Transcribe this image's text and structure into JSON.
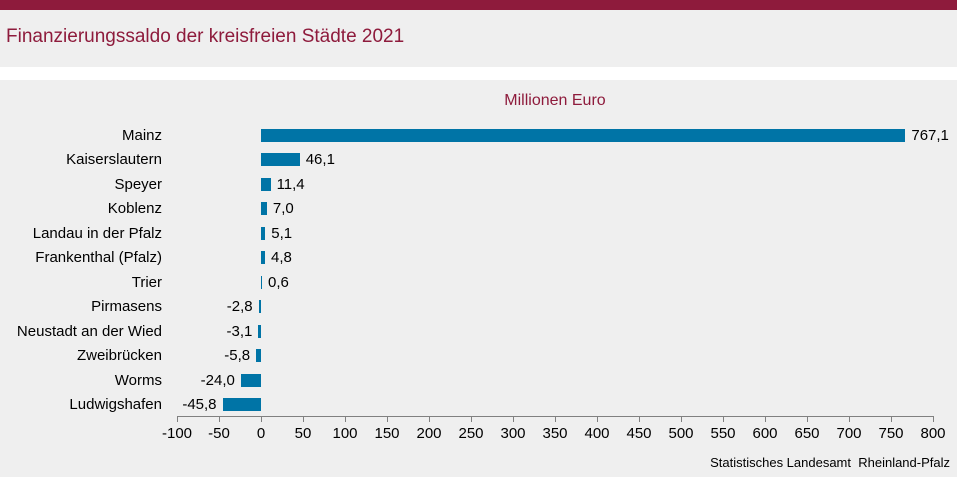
{
  "page": {
    "source": "Statistisches Landesamt  Rheinland-Pfalz"
  },
  "chart_data": {
    "type": "bar",
    "orientation": "horizontal",
    "title": "Finanzierungssaldo der kreisfreien Städte 2021",
    "unit_label": "Millionen Euro",
    "categories": [
      "Mainz",
      "Kaiserslautern",
      "Speyer",
      "Koblenz",
      "Landau in der Pfalz",
      "Frankenthal (Pfalz)",
      "Trier",
      "Pirmasens",
      "Neustadt an der Wied",
      "Zweibrücken",
      "Worms",
      "Ludwigshafen"
    ],
    "values": [
      767.1,
      46.1,
      11.4,
      7.0,
      5.1,
      4.8,
      0.6,
      -2.8,
      -3.1,
      -5.8,
      -24.0,
      -45.8
    ],
    "value_labels": [
      "767,1",
      "46,1",
      "11,4",
      "7,0",
      "5,1",
      "4,8",
      "0,6",
      "-2,8",
      "-3,1",
      "-5,8",
      "-24,0",
      "-45,8"
    ],
    "xlim": [
      -100,
      800
    ],
    "x_ticks": [
      -100,
      -50,
      0,
      50,
      100,
      150,
      200,
      250,
      300,
      350,
      400,
      450,
      500,
      550,
      600,
      650,
      700,
      750,
      800
    ],
    "grid": false,
    "legend": "none",
    "bar_color": "#0074a6",
    "accent_color": "#8e1b3c",
    "axis_color": "#808080",
    "background_color": "#efefef"
  }
}
